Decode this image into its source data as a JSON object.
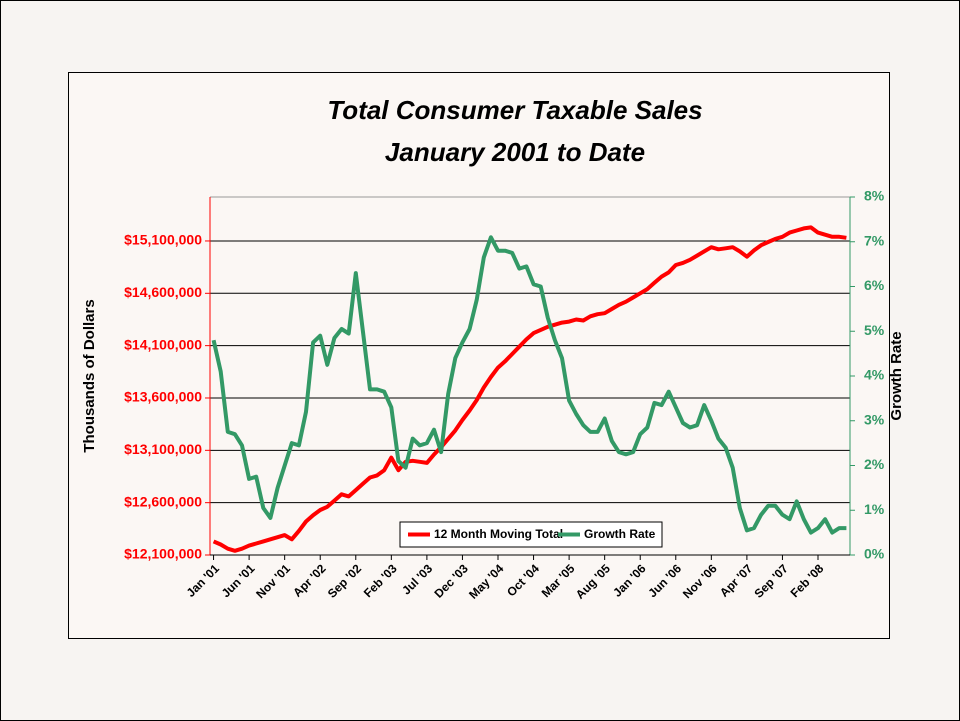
{
  "chart_data": {
    "type": "line",
    "title": "Total Consumer Taxable Sales",
    "subtitle": "January 2001 to Date",
    "y_label": "Thousands of Dollars",
    "y2_label": "Growth Rate",
    "categories": [
      "Jan '01",
      null,
      null,
      null,
      null,
      "Jun '01",
      null,
      null,
      null,
      null,
      "Nov '01",
      null,
      null,
      null,
      null,
      "Apr '02",
      null,
      null,
      null,
      null,
      "Sep '02",
      null,
      null,
      null,
      null,
      "Feb '03",
      null,
      null,
      null,
      null,
      "Jul '03",
      null,
      null,
      null,
      null,
      "Dec '03",
      null,
      null,
      null,
      null,
      "May '04",
      null,
      null,
      null,
      null,
      "Oct '04",
      null,
      null,
      null,
      null,
      "Mar '05",
      null,
      null,
      null,
      null,
      "Aug '05",
      null,
      null,
      null,
      null,
      "Jan '06",
      null,
      null,
      null,
      null,
      "Jun '06",
      null,
      null,
      null,
      null,
      "Nov '06",
      null,
      null,
      null,
      null,
      "Apr '07",
      null,
      null,
      null,
      null,
      "Sep '07",
      null,
      null,
      null,
      null,
      "Feb '08",
      null,
      null,
      null,
      null
    ],
    "series": [
      {
        "name": "12 Month Moving Total",
        "color": "#ff0000",
        "axis": "y",
        "values": [
          12230000,
          12200000,
          12160000,
          12140000,
          12160000,
          12190000,
          12210000,
          12230000,
          12250000,
          12270000,
          12290000,
          12250000,
          12330000,
          12420000,
          12480000,
          12530000,
          12560000,
          12620000,
          12680000,
          12660000,
          12720000,
          12780000,
          12840000,
          12860000,
          12910000,
          13030000,
          12910000,
          12990000,
          13000000,
          12990000,
          12980000,
          13060000,
          13130000,
          13210000,
          13290000,
          13390000,
          13480000,
          13580000,
          13700000,
          13800000,
          13890000,
          13950000,
          14020000,
          14090000,
          14160000,
          14220000,
          14250000,
          14280000,
          14300000,
          14320000,
          14330000,
          14350000,
          14340000,
          14380000,
          14400000,
          14410000,
          14450000,
          14490000,
          14520000,
          14560000,
          14600000,
          14640000,
          14700000,
          14760000,
          14800000,
          14870000,
          14890000,
          14920000,
          14960000,
          15000000,
          15040000,
          15020000,
          15030000,
          15040000,
          15000000,
          14950000,
          15010000,
          15060000,
          15090000,
          15120000,
          15140000,
          15180000,
          15200000,
          15220000,
          15230000,
          15180000,
          15160000,
          15140000,
          15140000,
          15130000
        ]
      },
      {
        "name": "Growth Rate",
        "color": "#339966",
        "axis": "y2",
        "values": [
          4.8,
          4.1,
          2.75,
          2.7,
          2.45,
          1.7,
          1.75,
          1.05,
          0.83,
          1.5,
          2.0,
          2.5,
          2.45,
          3.2,
          4.75,
          4.9,
          4.25,
          4.85,
          5.05,
          4.95,
          6.3,
          5.0,
          3.7,
          3.7,
          3.65,
          3.3,
          2.1,
          1.95,
          2.6,
          2.45,
          2.5,
          2.8,
          2.3,
          3.6,
          4.4,
          4.75,
          5.05,
          5.7,
          6.65,
          7.1,
          6.8,
          6.8,
          6.75,
          6.4,
          6.45,
          6.05,
          6.0,
          5.3,
          4.8,
          4.4,
          3.45,
          3.15,
          2.9,
          2.75,
          2.75,
          3.05,
          2.55,
          2.3,
          2.25,
          2.3,
          2.7,
          2.85,
          3.4,
          3.35,
          3.65,
          3.3,
          2.95,
          2.85,
          2.9,
          3.35,
          3.0,
          2.6,
          2.4,
          1.95,
          1.05,
          0.55,
          0.6,
          0.9,
          1.1,
          1.1,
          0.9,
          0.8,
          1.2,
          0.8,
          0.5,
          0.6,
          0.8,
          0.5,
          0.6,
          0.6
        ]
      }
    ],
    "ylim": [
      12100000,
      15520000
    ],
    "yticks": [
      {
        "value": 12100000,
        "label": "$12,100,000"
      },
      {
        "value": 12600000,
        "label": "$12,600,000"
      },
      {
        "value": 13100000,
        "label": "$13,100,000"
      },
      {
        "value": 13600000,
        "label": "$13,600,000"
      },
      {
        "value": 14100000,
        "label": "$14,100,000"
      },
      {
        "value": 14600000,
        "label": "$14,600,000"
      },
      {
        "value": 15100000,
        "label": "$15,100,000"
      }
    ],
    "y2lim": [
      0,
      8
    ],
    "y2ticks": [
      {
        "value": 0,
        "label": "0%"
      },
      {
        "value": 1,
        "label": "1%"
      },
      {
        "value": 2,
        "label": "2%"
      },
      {
        "value": 3,
        "label": "3%"
      },
      {
        "value": 4,
        "label": "4%"
      },
      {
        "value": 5,
        "label": "5%"
      },
      {
        "value": 6,
        "label": "6%"
      },
      {
        "value": 7,
        "label": "7%"
      },
      {
        "value": 8,
        "label": "8%"
      }
    ],
    "grid": true,
    "legend": "bottom"
  }
}
